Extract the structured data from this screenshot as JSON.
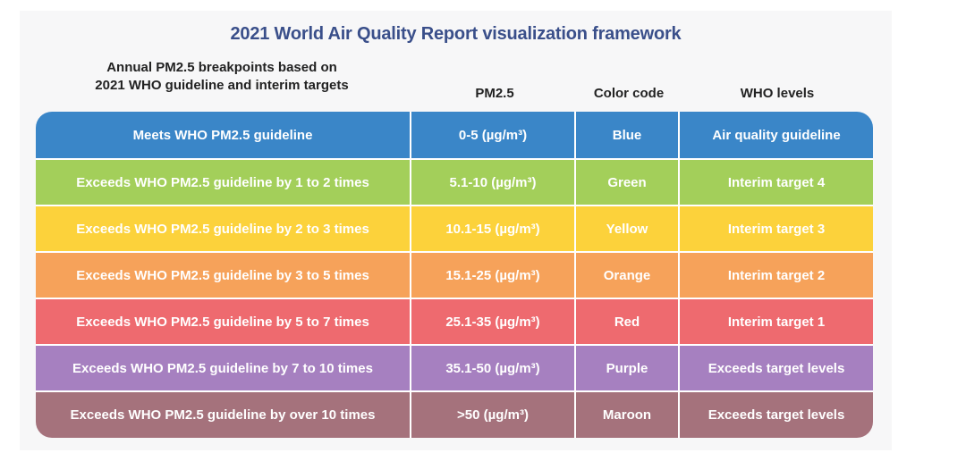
{
  "title": "2021 World Air Quality Report visualization framework",
  "subtitle_line1": "Annual PM2.5 breakpoints based on",
  "subtitle_line2": "2021 WHO guideline and interim targets",
  "columns": {
    "pm25": "PM2.5",
    "color_code": "Color code",
    "who_levels": "WHO levels"
  },
  "rows": [
    {
      "description": "Meets WHO PM2.5 guideline",
      "range": "0-5 (µg/m³)",
      "color_name": "Blue",
      "who_level": "Air quality guideline",
      "color": "#3a86c8"
    },
    {
      "description": "Exceeds WHO PM2.5 guideline by 1 to 2 times",
      "range": "5.1-10 (µg/m³)",
      "color_name": "Green",
      "who_level": "Interim target 4",
      "color": "#a3cf5a"
    },
    {
      "description": "Exceeds WHO PM2.5 guideline by 2 to 3 times",
      "range": "10.1-15 (µg/m³)",
      "color_name": "Yellow",
      "who_level": "Interim target 3",
      "color": "#fcd23b"
    },
    {
      "description": "Exceeds WHO PM2.5 guideline by 3 to 5 times",
      "range": "15.1-25 (µg/m³)",
      "color_name": "Orange",
      "who_level": "Interim target 2",
      "color": "#f6a25a"
    },
    {
      "description": "Exceeds WHO PM2.5 guideline by 5 to 7 times",
      "range": "25.1-35 (µg/m³)",
      "color_name": "Red",
      "who_level": "Interim target 1",
      "color": "#ee6a6f"
    },
    {
      "description": "Exceeds WHO PM2.5 guideline by 7 to 10 times",
      "range": "35.1-50 (µg/m³)",
      "color_name": "Purple",
      "who_level": "Exceeds target levels",
      "color": "#a680c0"
    },
    {
      "description": "Exceeds WHO PM2.5 guideline by over 10 times",
      "range": ">50 (µg/m³)",
      "color_name": "Maroon",
      "who_level": "Exceeds target levels",
      "color": "#a5727c"
    }
  ]
}
